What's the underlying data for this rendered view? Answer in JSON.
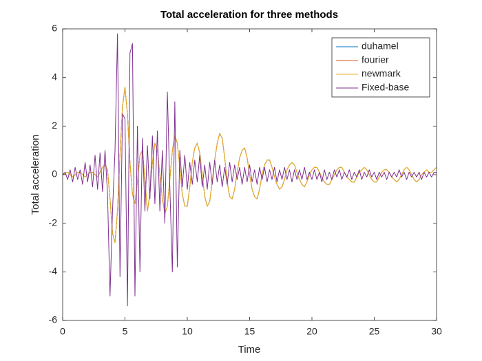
{
  "chart_data": {
    "type": "line",
    "title": "Total acceleration for three methods",
    "x_label": "Time",
    "y_label": "Total acceleration",
    "xlim": [
      0,
      30
    ],
    "ylim": [
      -6,
      6
    ],
    "xticks": [
      0,
      5,
      10,
      15,
      20,
      25,
      30
    ],
    "yticks": [
      -6,
      -4,
      -2,
      0,
      2,
      4,
      6
    ],
    "grid": false,
    "legend": "northeast",
    "x": [
      0,
      0.2,
      0.4,
      0.6,
      0.8,
      1,
      1.2,
      1.4,
      1.6,
      1.8,
      2,
      2.2,
      2.4,
      2.6,
      2.8,
      3,
      3.2,
      3.4,
      3.6,
      3.8,
      4,
      4.2,
      4.4,
      4.6,
      4.8,
      5,
      5.2,
      5.4,
      5.6,
      5.8,
      6,
      6.2,
      6.4,
      6.6,
      6.8,
      7,
      7.2,
      7.4,
      7.6,
      7.8,
      8,
      8.2,
      8.4,
      8.6,
      8.8,
      9,
      9.2,
      9.4,
      9.6,
      9.8,
      10,
      10.2,
      10.4,
      10.6,
      10.8,
      11,
      11.2,
      11.4,
      11.6,
      11.8,
      12,
      12.2,
      12.4,
      12.6,
      12.8,
      13,
      13.2,
      13.4,
      13.6,
      13.8,
      14,
      14.2,
      14.4,
      14.6,
      14.8,
      15,
      15.2,
      15.4,
      15.6,
      15.8,
      16,
      16.2,
      16.4,
      16.6,
      16.8,
      17,
      17.2,
      17.4,
      17.6,
      17.8,
      18,
      18.2,
      18.4,
      18.6,
      18.8,
      19,
      19.2,
      19.4,
      19.6,
      19.8,
      20,
      20.2,
      20.4,
      20.6,
      20.8,
      21,
      21.2,
      21.4,
      21.6,
      21.8,
      22,
      22.2,
      22.4,
      22.6,
      22.8,
      23,
      23.2,
      23.4,
      23.6,
      23.8,
      24,
      24.2,
      24.4,
      24.6,
      24.8,
      25,
      25.2,
      25.4,
      25.6,
      25.8,
      26,
      26.2,
      26.4,
      26.6,
      26.8,
      27,
      27.2,
      27.4,
      27.6,
      27.8,
      28,
      28.2,
      28.4,
      28.6,
      28.8,
      29,
      29.2,
      29.4,
      29.6,
      29.8,
      30
    ],
    "series": [
      {
        "name": "duhamel",
        "color": "#0072BD",
        "values": [
          0,
          0.05,
          0.1,
          0,
          -0.1,
          0,
          0.1,
          0.1,
          0,
          -0.1,
          0,
          0.1,
          0.1,
          0,
          -0.1,
          0.1,
          0.3,
          0.4,
          0.2,
          -1.0,
          -2.4,
          -2.8,
          -1.5,
          0.8,
          2.8,
          3.6,
          2.5,
          0.5,
          -0.8,
          -1.2,
          -0.3,
          0.8,
          1.0,
          -0.2,
          -1.5,
          -0.8,
          0.5,
          1.3,
          1.0,
          0,
          -1.0,
          -1.6,
          -1.3,
          -0.2,
          1.0,
          1.6,
          1.3,
          0.3,
          -0.8,
          -1.3,
          -1.3,
          -0.5,
          0.5,
          1.1,
          1.3,
          0.9,
          0,
          -0.9,
          -1.3,
          -1.1,
          -0.3,
          0.6,
          1.3,
          1.7,
          1.5,
          0.7,
          -0.3,
          -0.9,
          -1.0,
          -0.6,
          0.1,
          0.7,
          1.0,
          1.1,
          0.7,
          0,
          -0.6,
          -0.9,
          -1.0,
          -0.6,
          0,
          0.4,
          0.6,
          0.6,
          0.3,
          -0.1,
          -0.4,
          -0.6,
          -0.5,
          -0.2,
          0.2,
          0.4,
          0.5,
          0.4,
          0.1,
          -0.2,
          -0.4,
          -0.5,
          -0.3,
          0,
          0.2,
          0.3,
          0.3,
          0.1,
          -0.1,
          -0.3,
          -0.4,
          -0.4,
          -0.2,
          0,
          0.2,
          0.3,
          0.3,
          0.1,
          -0.1,
          -0.2,
          -0.3,
          -0.3,
          -0.1,
          0.1,
          0.2,
          0.3,
          0.2,
          0,
          -0.2,
          -0.3,
          -0.3,
          -0.1,
          0.1,
          0.2,
          0.2,
          0.1,
          -0.1,
          -0.2,
          -0.3,
          -0.2,
          0,
          0.2,
          0.3,
          0.2,
          0,
          -0.2,
          -0.3,
          -0.2,
          0,
          0.1,
          0.2,
          0.1,
          0.1,
          0.2,
          0.3
        ]
      },
      {
        "name": "fourier",
        "color": "#D95319",
        "values": [
          0,
          0.05,
          0.1,
          0,
          -0.1,
          0,
          0.1,
          0.1,
          0,
          -0.1,
          0,
          0.1,
          0.1,
          0,
          -0.1,
          0.1,
          0.3,
          0.4,
          0.2,
          -1.0,
          -2.4,
          -2.8,
          -1.5,
          0.8,
          2.8,
          3.6,
          2.5,
          0.5,
          -0.8,
          -1.2,
          -0.3,
          0.8,
          1.0,
          -0.2,
          -1.5,
          -0.8,
          0.5,
          1.3,
          1.0,
          0,
          -1.0,
          -1.6,
          -1.3,
          -0.2,
          1.0,
          1.6,
          1.3,
          0.3,
          -0.8,
          -1.3,
          -1.3,
          -0.5,
          0.5,
          1.1,
          1.3,
          0.9,
          0,
          -0.9,
          -1.3,
          -1.1,
          -0.3,
          0.6,
          1.3,
          1.7,
          1.5,
          0.7,
          -0.3,
          -0.9,
          -1.0,
          -0.6,
          0.1,
          0.7,
          1.0,
          1.1,
          0.7,
          0,
          -0.6,
          -0.9,
          -1.0,
          -0.6,
          0,
          0.4,
          0.6,
          0.6,
          0.3,
          -0.1,
          -0.4,
          -0.6,
          -0.5,
          -0.2,
          0.2,
          0.4,
          0.5,
          0.4,
          0.1,
          -0.2,
          -0.4,
          -0.5,
          -0.3,
          0,
          0.2,
          0.3,
          0.3,
          0.1,
          -0.1,
          -0.3,
          -0.4,
          -0.4,
          -0.2,
          0,
          0.2,
          0.3,
          0.3,
          0.1,
          -0.1,
          -0.2,
          -0.3,
          -0.3,
          -0.1,
          0.1,
          0.2,
          0.3,
          0.2,
          0,
          -0.2,
          -0.3,
          -0.3,
          -0.1,
          0.1,
          0.2,
          0.2,
          0.1,
          -0.1,
          -0.2,
          -0.3,
          -0.2,
          0,
          0.2,
          0.3,
          0.2,
          0,
          -0.2,
          -0.3,
          -0.2,
          0,
          0.1,
          0.2,
          0.1,
          0.1,
          0.2,
          0.3
        ]
      },
      {
        "name": "newmark",
        "color": "#EDB120",
        "values": [
          0,
          0.05,
          0.1,
          0,
          -0.1,
          0,
          0.1,
          0.1,
          0,
          -0.1,
          0,
          0.1,
          0.1,
          0,
          -0.1,
          0.1,
          0.3,
          0.4,
          0.2,
          -1.0,
          -2.4,
          -2.8,
          -1.5,
          0.8,
          2.8,
          3.6,
          2.5,
          0.5,
          -0.8,
          -1.2,
          -0.3,
          0.8,
          1.0,
          -0.2,
          -1.5,
          -0.8,
          0.5,
          1.3,
          1.0,
          0,
          -1.0,
          -1.6,
          -1.3,
          -0.2,
          1.0,
          1.6,
          1.3,
          0.3,
          -0.8,
          -1.3,
          -1.3,
          -0.5,
          0.5,
          1.1,
          1.3,
          0.9,
          0,
          -0.9,
          -1.3,
          -1.1,
          -0.3,
          0.6,
          1.3,
          1.7,
          1.5,
          0.7,
          -0.3,
          -0.9,
          -1.0,
          -0.6,
          0.1,
          0.7,
          1.0,
          1.1,
          0.7,
          0,
          -0.6,
          -0.9,
          -1.0,
          -0.6,
          0,
          0.4,
          0.6,
          0.6,
          0.3,
          -0.1,
          -0.4,
          -0.6,
          -0.5,
          -0.2,
          0.2,
          0.4,
          0.5,
          0.4,
          0.1,
          -0.2,
          -0.4,
          -0.5,
          -0.3,
          0,
          0.2,
          0.3,
          0.3,
          0.1,
          -0.1,
          -0.3,
          -0.4,
          -0.4,
          -0.2,
          0,
          0.2,
          0.3,
          0.3,
          0.1,
          -0.1,
          -0.2,
          -0.3,
          -0.3,
          -0.1,
          0.1,
          0.2,
          0.3,
          0.2,
          0,
          -0.2,
          -0.3,
          -0.3,
          -0.1,
          0.1,
          0.2,
          0.2,
          0.1,
          -0.1,
          -0.2,
          -0.3,
          -0.2,
          0,
          0.2,
          0.3,
          0.2,
          0,
          -0.2,
          -0.3,
          -0.2,
          0,
          0.1,
          0.2,
          0.1,
          0.1,
          0.2,
          0.3
        ]
      },
      {
        "name": "Fixed-base",
        "color": "#7E2F8E",
        "values": [
          0,
          0.1,
          -0.2,
          0.2,
          -0.3,
          0.3,
          -0.2,
          0.2,
          -0.4,
          0.5,
          -0.3,
          0.4,
          -0.5,
          0.8,
          -0.6,
          0.9,
          -0.7,
          1.0,
          -0.8,
          -5.0,
          -1.5,
          1.0,
          5.8,
          -4.2,
          2.5,
          2.3,
          -5.4,
          5.0,
          5.4,
          -5.0,
          2.0,
          -4.0,
          1.5,
          -1.5,
          1.2,
          -1.0,
          1.6,
          -1.2,
          1.8,
          -1.5,
          1.0,
          -2.0,
          3.4,
          -0.5,
          -4.0,
          3.0,
          -3.8,
          1.0,
          -0.5,
          0.8,
          -0.6,
          0.5,
          -0.4,
          0.6,
          -0.3,
          0.8,
          -0.5,
          0.4,
          -0.6,
          0.5,
          -0.4,
          0.6,
          -0.3,
          0.4,
          -0.5,
          0.3,
          -0.4,
          0.5,
          -0.3,
          0.4,
          -0.2,
          0.3,
          -0.4,
          0.3,
          -0.3,
          0.4,
          -0.3,
          0.2,
          -0.4,
          0.3,
          -0.2,
          0.3,
          -0.3,
          0.2,
          -0.2,
          0.3,
          -0.3,
          0.2,
          -0.2,
          0.3,
          -0.2,
          0.2,
          -0.3,
          0.2,
          -0.2,
          0.2,
          -0.2,
          0.3,
          -0.2,
          0.1,
          -0.2,
          0.2,
          -0.2,
          0.1,
          -0.3,
          0.2,
          -0.2,
          0.1,
          -0.2,
          0.2,
          -0.1,
          0.2,
          -0.2,
          0.1,
          -0.1,
          0.2,
          -0.2,
          0.1,
          -0.1,
          0.2,
          -0.2,
          0.1,
          -0.1,
          0.2,
          -0.1,
          0.1,
          -0.2,
          0.1,
          -0.1,
          0.1,
          -0.2,
          0.1,
          -0.1,
          0.1,
          -0.1,
          0.2,
          -0.1,
          0.1,
          -0.2,
          0.1,
          -0.1,
          0.1,
          -0.1,
          0.1,
          -0.2,
          0.1,
          -0.1,
          0.1,
          -0.1,
          0.1,
          0.1
        ]
      }
    ]
  }
}
